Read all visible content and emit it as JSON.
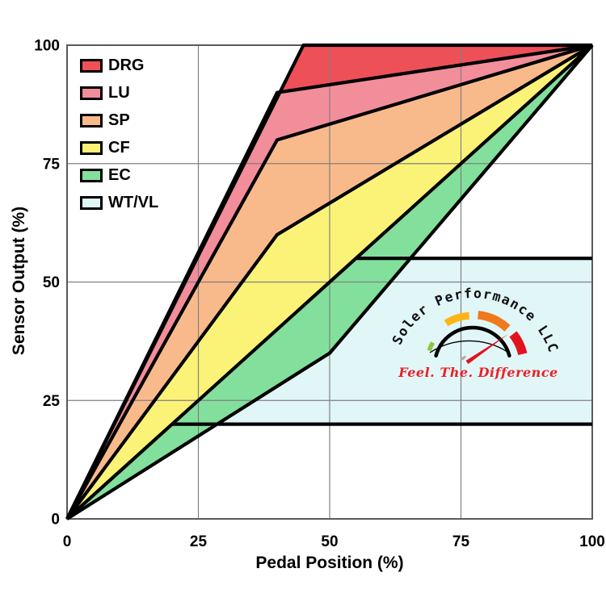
{
  "chart_data": {
    "type": "area",
    "title": "",
    "xlabel": "Pedal Position (%)",
    "ylabel": "Sensor Output (%)",
    "xlim": [
      0,
      100
    ],
    "ylim": [
      0,
      100
    ],
    "xticks": [
      0,
      25,
      50,
      75,
      100
    ],
    "yticks": [
      0,
      25,
      50,
      75,
      100
    ],
    "grid": true,
    "legend_position": "top-left",
    "description": "Throttle response curves: sensor output vs pedal position for modes DRG, LU, SP, CF, EC and WT/VL limit window",
    "bands": [
      {
        "name": "WT/VL",
        "color": "#E1F6F7",
        "polygon": [
          [
            20,
            20
          ],
          [
            55,
            55
          ],
          [
            100,
            55
          ],
          [
            100,
            20
          ]
        ]
      },
      {
        "name": "DRG",
        "color": "#EE5058",
        "upper": [
          [
            0,
            0
          ],
          [
            45,
            100
          ],
          [
            100,
            100
          ]
        ],
        "lower": [
          [
            0,
            0
          ],
          [
            40,
            90
          ],
          [
            100,
            100
          ]
        ]
      },
      {
        "name": "LU",
        "color": "#F18E99",
        "upper": [
          [
            0,
            0
          ],
          [
            40,
            90
          ],
          [
            100,
            100
          ]
        ],
        "lower": [
          [
            0,
            0
          ],
          [
            40,
            80
          ],
          [
            100,
            100
          ]
        ]
      },
      {
        "name": "SP",
        "color": "#F9BA8B",
        "upper": [
          [
            0,
            0
          ],
          [
            40,
            80
          ],
          [
            100,
            100
          ]
        ],
        "lower": [
          [
            0,
            0
          ],
          [
            40,
            60
          ],
          [
            100,
            100
          ]
        ]
      },
      {
        "name": "CF",
        "color": "#FAF378",
        "upper": [
          [
            0,
            0
          ],
          [
            40,
            60
          ],
          [
            100,
            100
          ]
        ],
        "lower": [
          [
            0,
            0
          ],
          [
            100,
            100
          ]
        ]
      },
      {
        "name": "EC",
        "color": "#82E09C",
        "upper": [
          [
            0,
            0
          ],
          [
            100,
            100
          ]
        ],
        "lower": [
          [
            0,
            0
          ],
          [
            50,
            35
          ],
          [
            100,
            100
          ]
        ]
      }
    ],
    "boundary_lines": [
      {
        "name": "DRG-line",
        "points": [
          [
            0,
            0
          ],
          [
            45,
            100
          ],
          [
            100,
            100
          ]
        ]
      },
      {
        "name": "LU-line",
        "points": [
          [
            0,
            0
          ],
          [
            40,
            90
          ],
          [
            100,
            100
          ]
        ]
      },
      {
        "name": "SP-line",
        "points": [
          [
            0,
            0
          ],
          [
            40,
            80
          ],
          [
            100,
            100
          ]
        ]
      },
      {
        "name": "CF-line",
        "points": [
          [
            0,
            0
          ],
          [
            40,
            60
          ],
          [
            100,
            100
          ]
        ]
      },
      {
        "name": "EC-upper-line",
        "points": [
          [
            0,
            0
          ],
          [
            100,
            100
          ]
        ]
      },
      {
        "name": "EC-lower-line",
        "points": [
          [
            0,
            0
          ],
          [
            50,
            35
          ],
          [
            100,
            100
          ]
        ]
      },
      {
        "name": "WT-limit-line",
        "points": [
          [
            55,
            55
          ],
          [
            100,
            55
          ]
        ]
      },
      {
        "name": "VL-limit-line",
        "points": [
          [
            20,
            20
          ],
          [
            100,
            20
          ]
        ]
      }
    ],
    "legend": [
      {
        "label": "DRG",
        "color": "#EE5058"
      },
      {
        "label": "LU",
        "color": "#F18E99"
      },
      {
        "label": "SP",
        "color": "#F9BA8B"
      },
      {
        "label": "CF",
        "color": "#FAF378"
      },
      {
        "label": "EC",
        "color": "#82E09C"
      },
      {
        "label": "WT/VL",
        "color": "#E1F6F7"
      }
    ]
  },
  "logo": {
    "title": "Soler Performance LLC",
    "tagline": "Feel. The. Difference",
    "tagline_color": "#EC2028",
    "gauge_colors": {
      "green": "#8CC63F",
      "yellow": "#FFB515",
      "orange": "#F0791C",
      "red": "#E2131F",
      "needle": "#E2131F",
      "pivot": "#ABABAB",
      "arc": "#000000"
    }
  },
  "colors": {
    "grid": "#808080",
    "frame": "#5A5A5A",
    "curve_stroke": "#000000",
    "background": "#FFFFFF",
    "text": "#000000"
  }
}
